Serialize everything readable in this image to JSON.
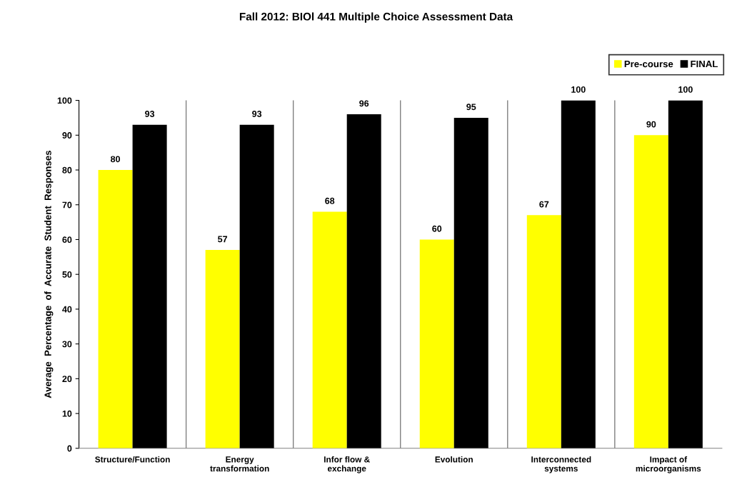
{
  "chart_data": {
    "type": "bar",
    "title": "Fall 2012: BIOl 441 Multiple Choice Assessment Data",
    "ylabel": "Average  Percentage  of  Accurate  Student  Responses",
    "categories": [
      "Structure/Function",
      "Energy\ntransformation",
      "Infor flow &\nexchange",
      "Evolution",
      "Interconnected\nsystems",
      "Impact of\nmicroorganisms"
    ],
    "series": [
      {
        "name": "Pre-course",
        "color": "#ffff00",
        "values": [
          80,
          57,
          68,
          60,
          67,
          90
        ]
      },
      {
        "name": "FINAL",
        "color": "#000000",
        "values": [
          93,
          93,
          96,
          95,
          100,
          100
        ]
      }
    ],
    "ylim": [
      0,
      100
    ],
    "yticks": [
      0,
      10,
      20,
      30,
      40,
      50,
      60,
      70,
      80,
      90,
      100
    ],
    "data_labels": true,
    "grid": "x",
    "legend": "top right"
  }
}
